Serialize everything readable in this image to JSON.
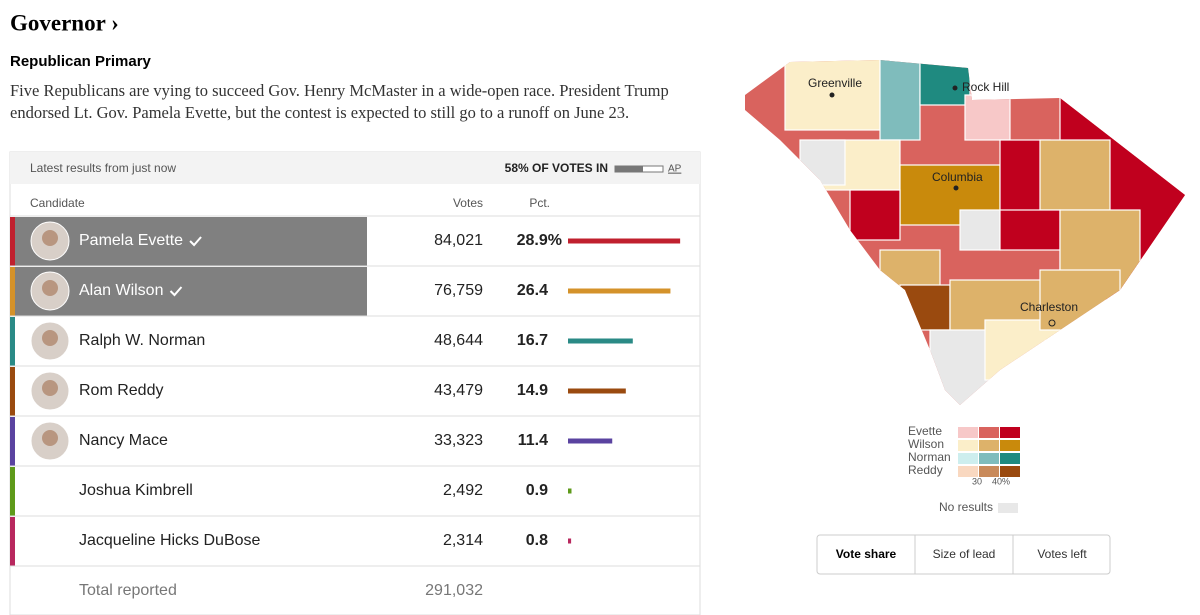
{
  "header": {
    "title": "Governor ›",
    "subtitle": "Republican Primary",
    "description": "Five Republicans are vying to succeed Gov. Henry McMaster in a wide-open race. President Trump endorsed Lt. Gov. Pamela Evette, but the contest is expected to still go to a runoff on June 23."
  },
  "results": {
    "status": "Latest results from just now",
    "reporting": "58% OF VOTES IN",
    "source": "AP",
    "columns": [
      "Candidate",
      "Votes",
      "Pct."
    ],
    "rows": [
      {
        "name": "Pamela Evette",
        "votes": "84,021",
        "pct": {
          "value": 28.9,
          "label": "28.9%"
        },
        "winner": true,
        "photo": true,
        "color": "#c0202e"
      },
      {
        "name": "Alan Wilson",
        "votes": "76,759",
        "pct": 26.4,
        "winner": true,
        "photo": true,
        "color": "#d4922a"
      },
      {
        "name": "Ralph W. Norman",
        "votes": "48,644",
        "pct": 16.7,
        "winner": false,
        "photo": true,
        "color": "#2a8a86"
      },
      {
        "name": "Rom Reddy",
        "votes": "43,479",
        "pct": 14.9,
        "winner": false,
        "photo": true,
        "color": "#9a4a0f"
      },
      {
        "name": "Nancy Mace",
        "votes": "33,323",
        "pct": 11.4,
        "winner": false,
        "photo": true,
        "color": "#5a43a0"
      },
      {
        "name": "Joshua Kimbrell",
        "votes": "2,492",
        "pct": 0.9,
        "winner": false,
        "photo": false,
        "color": "#5e9a1a"
      },
      {
        "name": "Jacqueline Hicks DuBose",
        "votes": "2,314",
        "pct": 0.8,
        "winner": false,
        "photo": false,
        "color": "#b8285e"
      }
    ],
    "total_label": "Total reported",
    "total_votes": "291,032"
  },
  "map": {
    "cities": [
      "Greenville",
      "Rock Hill",
      "Columbia",
      "Charleston"
    ],
    "legend": [
      {
        "name": "Evette",
        "colors": [
          "#f7c8c8",
          "#d9635e",
          "#c0001e"
        ]
      },
      {
        "name": "Wilson",
        "colors": [
          "#fbeec9",
          "#ddb26a",
          "#c98a0c"
        ]
      },
      {
        "name": "Norman",
        "colors": [
          "#cdeeee",
          "#7fbcbc",
          "#1f8a80"
        ]
      },
      {
        "name": "Reddy",
        "colors": [
          "#f9d8c0",
          "#c98a5a",
          "#9a4a0f"
        ]
      }
    ],
    "scale_labels": [
      "30",
      "40%"
    ],
    "no_results": "No results"
  },
  "tabs": [
    "Vote share",
    "Size of lead",
    "Votes left"
  ]
}
